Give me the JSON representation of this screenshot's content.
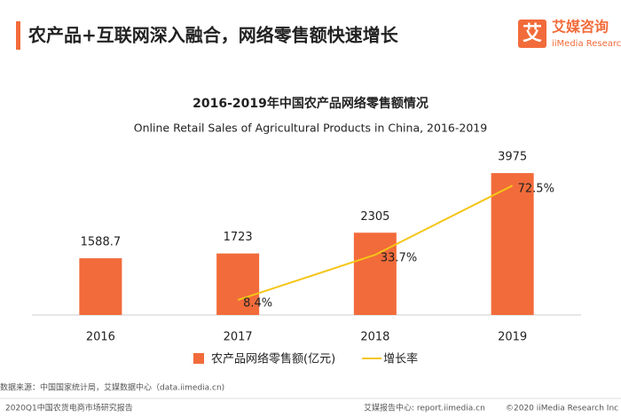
{
  "header": {
    "title": "农产品+互联网深入融合，网络零售额快速增长",
    "logo_icon": "艾",
    "logo_cn": "艾媒咨询",
    "logo_en": "iiMedia Research"
  },
  "chart_data": {
    "type": "bar",
    "title": "2016-2019年中国农产品网络零售额情况",
    "subtitle": "Online Retail Sales of Agricultural Products in China, 2016-2019",
    "categories": [
      "2016",
      "2017",
      "2018",
      "2019"
    ],
    "series": [
      {
        "name": "农产品网络零售额(亿元)",
        "type": "bar",
        "color": "#f26b3a",
        "values": [
          1588.7,
          1723,
          2305,
          3975
        ]
      },
      {
        "name": "增长率",
        "type": "line",
        "axis": "y2",
        "color": "#f5c518",
        "values": [
          null,
          8.4,
          33.7,
          72.5
        ],
        "value_labels": [
          null,
          "8.4%",
          "33.7%",
          "72.5%"
        ]
      }
    ],
    "ylim": [
      0,
      4400
    ],
    "y2lim": [
      0,
      88
    ],
    "grid": false
  },
  "footer": {
    "source": "数据来源：中国国家统计局，艾媒数据中心（data.iimedia.cn)",
    "report": "2020Q1中国农货电商市场研究报告",
    "site": "艾媒报告中心: report.iimedia.cn",
    "copyright": "©2020  iiMedia Research Inc"
  }
}
